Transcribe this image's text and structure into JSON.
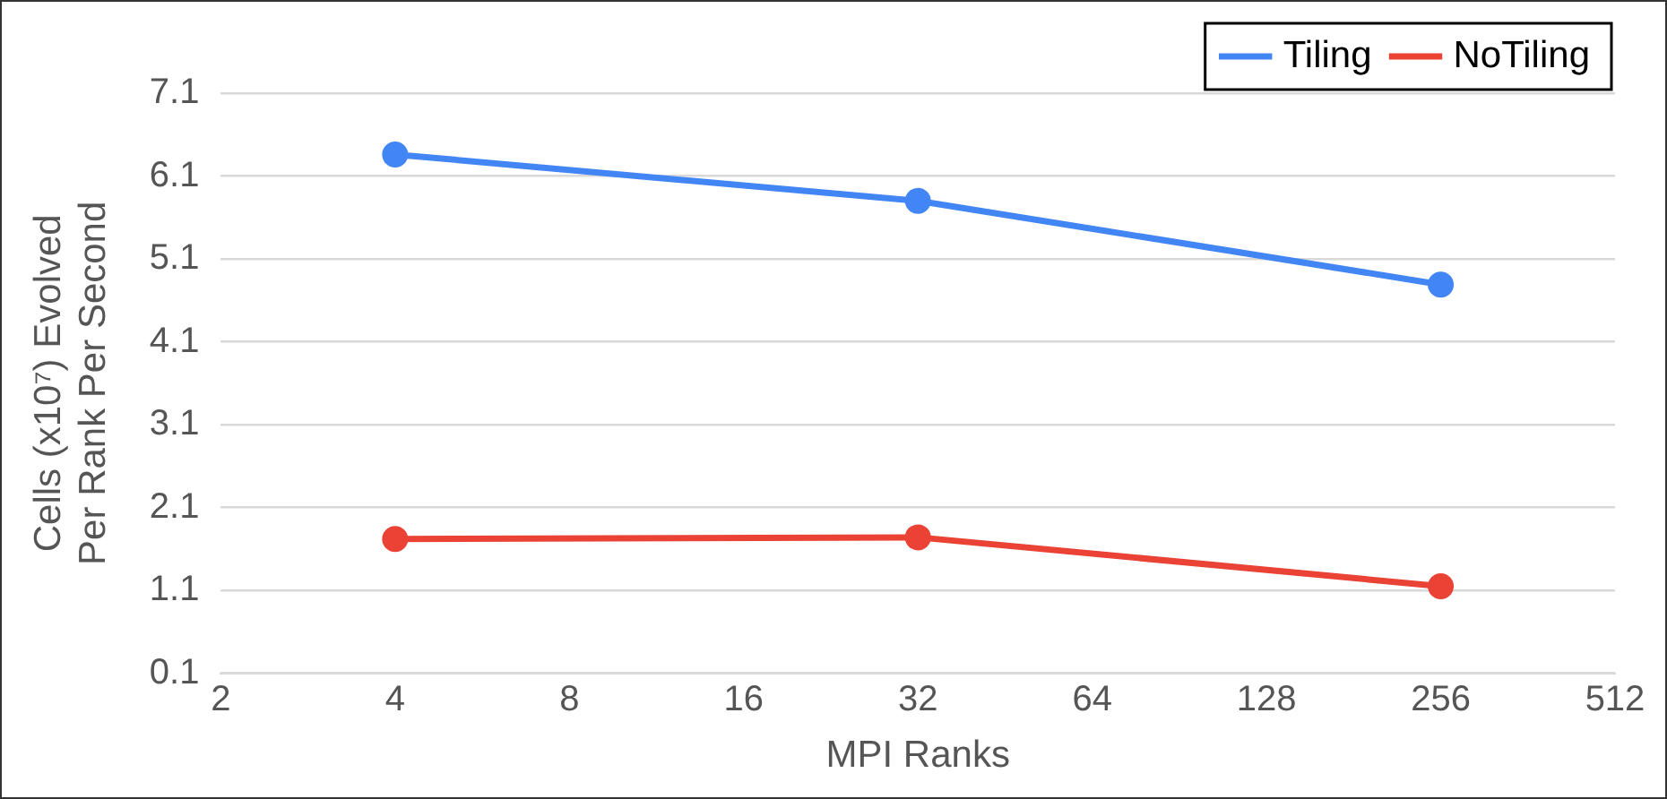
{
  "chart_data": {
    "type": "line",
    "xlabel": "MPI Ranks",
    "ylabel": "Cells (x10⁷) Evolved Per Rank Per Second",
    "x": [
      4,
      32,
      256
    ],
    "series": [
      {
        "name": "Tiling",
        "color": "#4285f4",
        "values": [
          6.36,
          5.8,
          4.79
        ]
      },
      {
        "name": "NoTiling",
        "color": "#ea4335",
        "values": [
          1.72,
          1.74,
          1.15
        ]
      }
    ],
    "log": "x",
    "xlim": [
      2,
      512
    ],
    "xticks": [
      2,
      4,
      8,
      16,
      32,
      64,
      128,
      256,
      512
    ],
    "ylim": [
      0.1,
      7.1
    ],
    "yticks": [
      0.1,
      1.1,
      2.1,
      3.1,
      4.1,
      5.1,
      6.1,
      7.1
    ],
    "grid": "y",
    "legend": "top right",
    "marker": "circle",
    "line_style": "solid"
  }
}
